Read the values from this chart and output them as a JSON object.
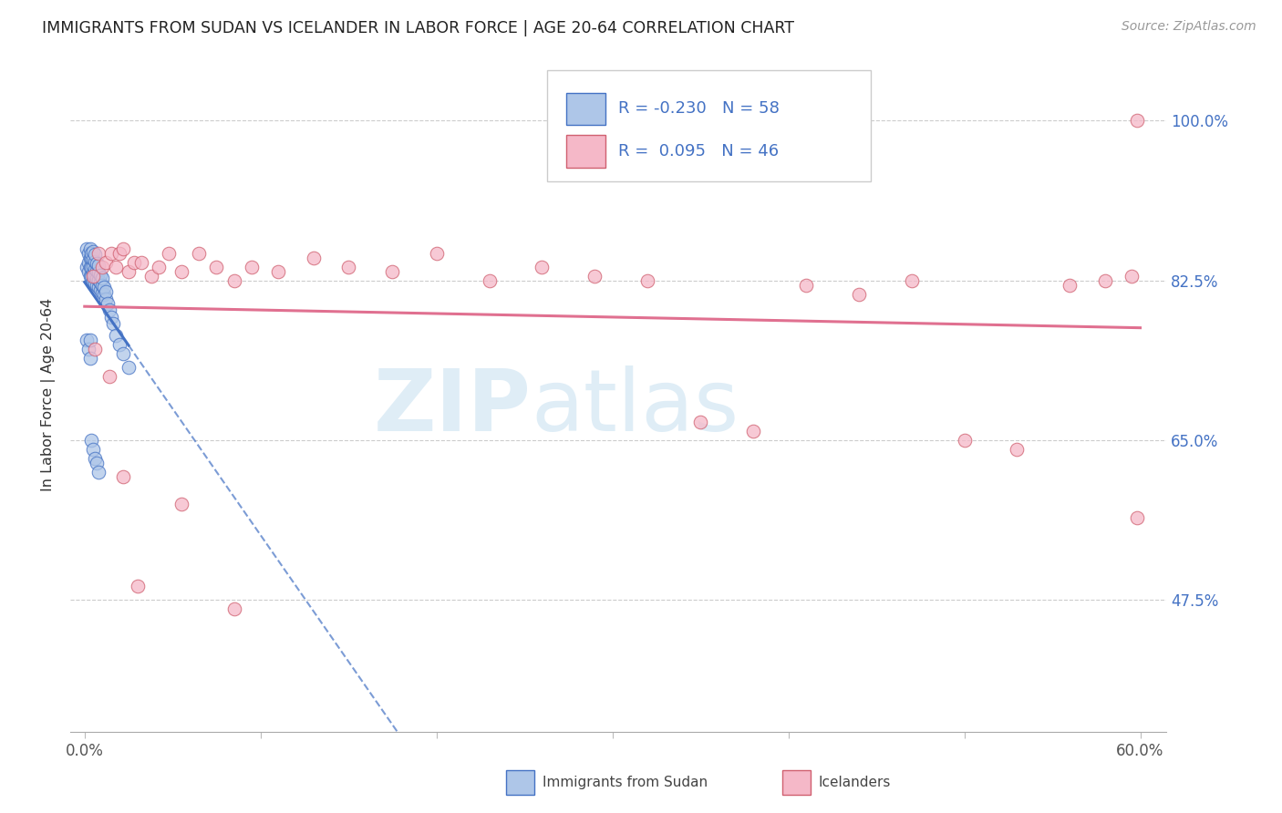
{
  "title": "IMMIGRANTS FROM SUDAN VS ICELANDER IN LABOR FORCE | AGE 20-64 CORRELATION CHART",
  "source": "Source: ZipAtlas.com",
  "ylabel": "In Labor Force | Age 20-64",
  "xlim_min": -0.008,
  "xlim_max": 0.615,
  "ylim_min": 0.33,
  "ylim_max": 1.07,
  "xticks": [
    0.0,
    0.1,
    0.2,
    0.3,
    0.4,
    0.5,
    0.6
  ],
  "xticklabels": [
    "0.0%",
    "",
    "",
    "",
    "",
    "",
    "60.0%"
  ],
  "ytick_positions": [
    0.475,
    0.65,
    0.825,
    1.0
  ],
  "ytick_labels": [
    "47.5%",
    "65.0%",
    "82.5%",
    "100.0%"
  ],
  "R_blue": -0.23,
  "N_blue": 58,
  "R_pink": 0.095,
  "N_pink": 46,
  "blue_face": "#aec6e8",
  "blue_edge": "#4472c4",
  "pink_face": "#f5b8c8",
  "pink_edge": "#d06070",
  "blue_line_color": "#4472c4",
  "pink_line_color": "#e07090",
  "grid_color": "#cccccc",
  "watermark_color": "#c5dff0",
  "blue_scatter_x": [
    0.001,
    0.001,
    0.002,
    0.002,
    0.002,
    0.003,
    0.003,
    0.003,
    0.003,
    0.004,
    0.004,
    0.004,
    0.004,
    0.005,
    0.005,
    0.005,
    0.005,
    0.005,
    0.006,
    0.006,
    0.006,
    0.006,
    0.006,
    0.007,
    0.007,
    0.007,
    0.007,
    0.008,
    0.008,
    0.008,
    0.008,
    0.009,
    0.009,
    0.009,
    0.01,
    0.01,
    0.01,
    0.011,
    0.011,
    0.012,
    0.012,
    0.013,
    0.014,
    0.015,
    0.016,
    0.018,
    0.02,
    0.022,
    0.025,
    0.001,
    0.002,
    0.003,
    0.003,
    0.004,
    0.005,
    0.006,
    0.007,
    0.008
  ],
  "blue_scatter_y": [
    0.84,
    0.86,
    0.835,
    0.845,
    0.855,
    0.83,
    0.84,
    0.85,
    0.86,
    0.83,
    0.84,
    0.85,
    0.855,
    0.825,
    0.833,
    0.841,
    0.849,
    0.857,
    0.822,
    0.83,
    0.838,
    0.846,
    0.854,
    0.82,
    0.828,
    0.836,
    0.844,
    0.818,
    0.826,
    0.834,
    0.842,
    0.815,
    0.823,
    0.831,
    0.812,
    0.82,
    0.828,
    0.81,
    0.818,
    0.805,
    0.813,
    0.8,
    0.793,
    0.785,
    0.778,
    0.765,
    0.755,
    0.745,
    0.73,
    0.76,
    0.75,
    0.74,
    0.76,
    0.65,
    0.64,
    0.63,
    0.625,
    0.615
  ],
  "pink_scatter_x": [
    0.005,
    0.008,
    0.01,
    0.012,
    0.015,
    0.018,
    0.02,
    0.022,
    0.025,
    0.028,
    0.032,
    0.038,
    0.042,
    0.048,
    0.055,
    0.065,
    0.075,
    0.085,
    0.095,
    0.11,
    0.13,
    0.15,
    0.175,
    0.2,
    0.23,
    0.26,
    0.29,
    0.32,
    0.35,
    0.38,
    0.41,
    0.44,
    0.47,
    0.5,
    0.53,
    0.56,
    0.58,
    0.595,
    0.598,
    0.006,
    0.014,
    0.022,
    0.03,
    0.055,
    0.085,
    0.598
  ],
  "pink_scatter_y": [
    0.83,
    0.855,
    0.84,
    0.845,
    0.855,
    0.84,
    0.855,
    0.86,
    0.835,
    0.845,
    0.845,
    0.83,
    0.84,
    0.855,
    0.835,
    0.855,
    0.84,
    0.825,
    0.84,
    0.835,
    0.85,
    0.84,
    0.835,
    0.855,
    0.825,
    0.84,
    0.83,
    0.825,
    0.67,
    0.66,
    0.82,
    0.81,
    0.825,
    0.65,
    0.64,
    0.82,
    0.825,
    0.83,
    1.0,
    0.75,
    0.72,
    0.61,
    0.49,
    0.58,
    0.465,
    0.565
  ],
  "blue_line_x_start": 0.0,
  "blue_line_x_solid_end": 0.18,
  "blue_line_x_end": 0.6,
  "pink_line_x_start": 0.0,
  "pink_line_x_end": 0.6
}
